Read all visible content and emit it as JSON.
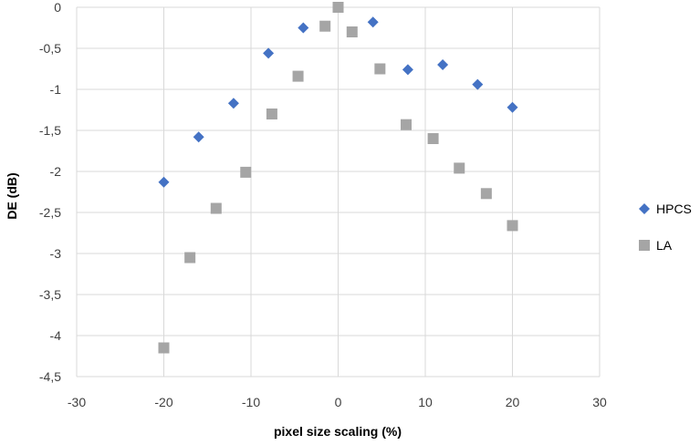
{
  "chart_data": {
    "type": "scatter",
    "xlabel": "pixel size scaling  (%)",
    "ylabel": "DE (dB)",
    "xlim": [
      -30,
      30
    ],
    "ylim": [
      -4.5,
      0
    ],
    "x_ticks": [
      "-30",
      "-20",
      "-10",
      "0",
      "10",
      "20",
      "30"
    ],
    "y_ticks": [
      "0",
      "-0,5",
      "-1",
      "-1,5",
      "-2",
      "-2,5",
      "-3",
      "-3,5",
      "-4",
      "-4,5"
    ],
    "grid": true,
    "legend_position": "right",
    "series": [
      {
        "name": "HPCS",
        "marker": "diamond",
        "color": "#4472C4",
        "points": [
          {
            "x": -20,
            "y": -2.13
          },
          {
            "x": -16,
            "y": -1.58
          },
          {
            "x": -12,
            "y": -1.17
          },
          {
            "x": -8,
            "y": -0.56
          },
          {
            "x": -4,
            "y": -0.25
          },
          {
            "x": 4,
            "y": -0.18
          },
          {
            "x": 8,
            "y": -0.76
          },
          {
            "x": 12,
            "y": -0.7
          },
          {
            "x": 16,
            "y": -0.94
          },
          {
            "x": 20,
            "y": -1.22
          }
        ]
      },
      {
        "name": "LA",
        "marker": "square",
        "color": "#A5A5A5",
        "points": [
          {
            "x": -20,
            "y": -4.15
          },
          {
            "x": -17,
            "y": -3.05
          },
          {
            "x": -14,
            "y": -2.45
          },
          {
            "x": -10.6,
            "y": -2.01
          },
          {
            "x": -7.6,
            "y": -1.3
          },
          {
            "x": -4.6,
            "y": -0.84
          },
          {
            "x": -1.5,
            "y": -0.23
          },
          {
            "x": 0,
            "y": 0
          },
          {
            "x": 1.6,
            "y": -0.3
          },
          {
            "x": 4.8,
            "y": -0.75
          },
          {
            "x": 7.8,
            "y": -1.43
          },
          {
            "x": 10.9,
            "y": -1.6
          },
          {
            "x": 13.9,
            "y": -1.96
          },
          {
            "x": 17,
            "y": -2.27
          },
          {
            "x": 20,
            "y": -2.66
          }
        ]
      }
    ]
  }
}
